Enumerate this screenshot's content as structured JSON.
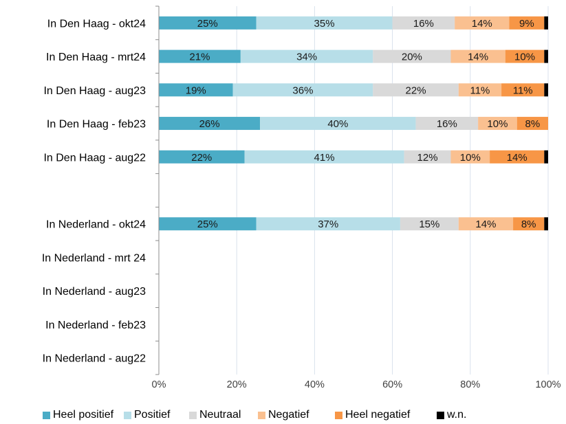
{
  "chart_data": {
    "type": "bar",
    "orientation": "horizontal",
    "stacked": true,
    "categories": [
      "In Den Haag - okt24",
      "In Den Haag - mrt24",
      "In Den Haag - aug23",
      "In Den Haag - feb23",
      "In Den Haag - aug22",
      "",
      "In Nederland - okt24",
      "In Nederland - mrt 24",
      "In Nederland - aug23",
      "In Nederland - feb23",
      "In Nederland - aug22"
    ],
    "series": [
      {
        "name": "Heel positief",
        "color": "#4bacc6",
        "values": [
          25,
          21,
          19,
          26,
          22,
          null,
          25,
          null,
          null,
          null,
          null
        ]
      },
      {
        "name": "Positief",
        "color": "#b7dee8",
        "values": [
          35,
          34,
          36,
          40,
          41,
          null,
          37,
          null,
          null,
          null,
          null
        ]
      },
      {
        "name": "Neutraal",
        "color": "#d9d9d9",
        "values": [
          16,
          20,
          22,
          16,
          12,
          null,
          15,
          null,
          null,
          null,
          null
        ]
      },
      {
        "name": "Negatief",
        "color": "#fac090",
        "values": [
          14,
          14,
          11,
          10,
          10,
          null,
          14,
          null,
          null,
          null,
          null
        ]
      },
      {
        "name": "Heel negatief",
        "color": "#f79646",
        "values": [
          9,
          10,
          11,
          8,
          14,
          null,
          8,
          null,
          null,
          null,
          null
        ]
      },
      {
        "name": "w.n.",
        "color": "#000000",
        "values": [
          1,
          1,
          1,
          0,
          1,
          null,
          1,
          null,
          null,
          null,
          null
        ]
      }
    ],
    "data_labels": [
      [
        "25%",
        "35%",
        "16%",
        "14%",
        "9%",
        ""
      ],
      [
        "21%",
        "34%",
        "20%",
        "14%",
        "10%",
        ""
      ],
      [
        "19%",
        "36%",
        "22%",
        "11%",
        "11%",
        ""
      ],
      [
        "26%",
        "40%",
        "16%",
        "10%",
        "8%",
        ""
      ],
      [
        "22%",
        "41%",
        "12%",
        "10%",
        "14%",
        ""
      ],
      [
        "",
        "",
        "",
        "",
        "",
        ""
      ],
      [
        "25%",
        "37%",
        "15%",
        "14%",
        "8%",
        ""
      ],
      [
        "",
        "",
        "",
        "",
        "",
        ""
      ],
      [
        "",
        "",
        "",
        "",
        "",
        ""
      ],
      [
        "",
        "",
        "",
        "",
        "",
        ""
      ],
      [
        "",
        "",
        "",
        "",
        "",
        ""
      ]
    ],
    "xlim": [
      0,
      100
    ],
    "x_ticks": [
      "0%",
      "20%",
      "40%",
      "60%",
      "80%",
      "100%"
    ],
    "grid": "vertical",
    "legend_position": "bottom",
    "title": "",
    "xlabel": "",
    "ylabel": ""
  }
}
